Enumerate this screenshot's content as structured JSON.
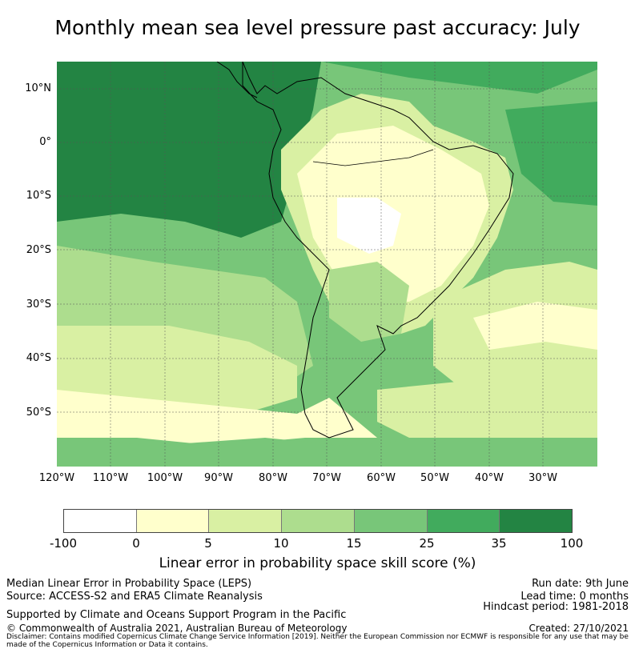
{
  "title": "Monthly mean sea level pressure past accuracy: July",
  "map": {
    "lat_ticks": [
      "10°N",
      "0°",
      "10°S",
      "20°S",
      "30°S",
      "40°S",
      "50°S"
    ],
    "lon_ticks": [
      "120°W",
      "110°W",
      "100°W",
      "90°W",
      "80°W",
      "70°W",
      "60°W",
      "50°W",
      "40°W",
      "30°W"
    ],
    "extent": {
      "lon": [
        -120,
        -20
      ],
      "lat": [
        -60,
        15
      ]
    },
    "region": "South America"
  },
  "colorbar": {
    "ticks": [
      "-100",
      "0",
      "5",
      "10",
      "15",
      "25",
      "35",
      "100"
    ],
    "colors": [
      "#ffffff",
      "#ffffcc",
      "#d9f0a3",
      "#addd8e",
      "#78c679",
      "#41ab5d",
      "#238443"
    ],
    "label": "Linear error in probability space skill score (%)"
  },
  "footer": {
    "left": [
      "Median Linear Error in Probability Space (LEPS)",
      "Source: ACCESS-S2 and ERA5 Climate Reanalysis",
      "Supported by Climate and Oceans Support Program in the Pacific",
      "© Commonwealth of Australia 2021, Australian Bureau of Meteorology"
    ],
    "right": [
      "Run date: 9th June",
      "Lead time: 0 months",
      "Hindcast period: 1981-2018",
      "Created: 27/10/2021"
    ],
    "disclaimer": "Disclaimer: Contains modified Copernicus Climate Change Service Information [2019]. Neither the European Commission nor ECMWF is responsible for any use that may be made of the Copernicus Information or Data it contains."
  }
}
